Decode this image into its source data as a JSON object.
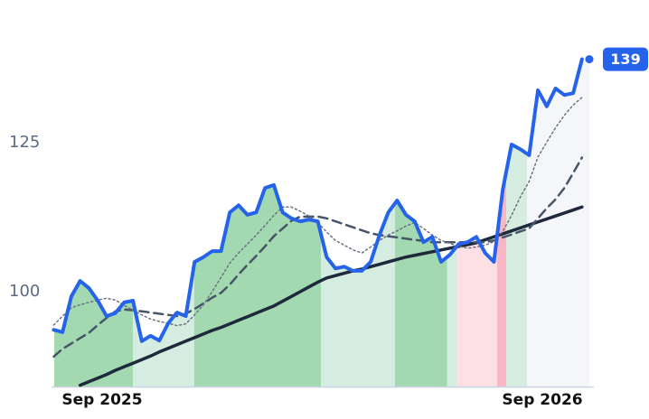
{
  "chart_data": {
    "type": "line",
    "x": [
      2025.56,
      2025.58,
      2025.6,
      2025.62,
      2025.64,
      2025.66,
      2025.68,
      2025.7,
      2025.72,
      2025.74,
      2025.76,
      2025.78,
      2025.8,
      2025.82,
      2025.84,
      2025.86,
      2025.88,
      2025.9,
      2025.92,
      2025.94,
      2025.96,
      2025.98,
      2026.0,
      2026.02,
      2026.04,
      2026.06,
      2026.08,
      2026.1,
      2026.12,
      2026.14,
      2026.16,
      2026.18,
      2026.2,
      2026.22,
      2026.24,
      2026.26,
      2026.28,
      2026.3,
      2026.32,
      2026.34,
      2026.36,
      2026.38,
      2026.4,
      2026.42,
      2026.44,
      2026.46,
      2026.48,
      2026.5,
      2026.52,
      2026.54,
      2026.56,
      2026.58,
      2026.6,
      2026.62,
      2026.64,
      2026.66,
      2026.68,
      2026.7,
      2026.72,
      2026.74,
      2026.76
    ],
    "series": [
      {
        "color": "#2563eb",
        "width": 4,
        "style": "solid",
        "values": [
          93.6,
          93.2,
          99.2,
          101.8,
          100.6,
          98.5,
          95.9,
          96.4,
          98.2,
          98.5,
          91.7,
          92.6,
          91.8,
          94.7,
          96.5,
          95.9,
          105,
          105.8,
          106.8,
          106.8,
          113.3,
          114.5,
          112.9,
          113.3,
          117.4,
          117.9,
          113.3,
          112.3,
          111.8,
          112.1,
          111.8,
          105.8,
          103.9,
          104.2,
          103.5,
          103.5,
          105,
          109.5,
          113.3,
          115.3,
          112.9,
          111.8,
          108.3,
          109.2,
          105,
          106.2,
          108,
          108.3,
          109.2,
          106.5,
          105,
          117.1,
          124.7,
          123.9,
          122.9,
          133.8,
          131.1,
          134.1,
          133,
          133.3,
          139
        ]
      },
      {
        "color": "#6b7280",
        "width": 1.5,
        "style": "dotted",
        "values": [
          94.4,
          95.9,
          97.3,
          97.8,
          98.2,
          98.6,
          98.9,
          98.6,
          97.7,
          96.9,
          96.1,
          95.4,
          95,
          94.7,
          94.3,
          94.6,
          96.1,
          97.8,
          100,
          102.4,
          104.8,
          106.5,
          108,
          109.5,
          111.1,
          112.8,
          114.2,
          114.2,
          113.5,
          112.7,
          111.6,
          110,
          108.6,
          107.8,
          107,
          106.5,
          107.5,
          108.6,
          109.5,
          110.2,
          111,
          111.6,
          110.6,
          109.5,
          108.6,
          108.1,
          107.6,
          107.3,
          107.5,
          107.8,
          108.4,
          110.1,
          112.8,
          115.9,
          118.5,
          122.6,
          125.1,
          127.5,
          129.6,
          131.3,
          132.6
        ]
      },
      {
        "color": "#475569",
        "width": 2.5,
        "style": "dashed",
        "values": [
          89.1,
          90.4,
          91.3,
          92.2,
          93.1,
          94.4,
          95.6,
          96.7,
          97,
          96.9,
          96.7,
          96.5,
          96.3,
          96.1,
          95.9,
          96.3,
          97.1,
          98,
          99,
          99.8,
          101.2,
          102.9,
          104.5,
          106,
          107.6,
          109.3,
          110.6,
          111.9,
          112.6,
          112.6,
          112.6,
          112.3,
          111.8,
          111.3,
          110.8,
          110.3,
          109.8,
          109.5,
          109.3,
          109.1,
          108.9,
          108.7,
          108.5,
          108.3,
          108.3,
          108.3,
          108.3,
          108.3,
          108.3,
          108.3,
          108.6,
          109.1,
          109.6,
          110.1,
          110.6,
          112.3,
          114,
          115.5,
          117.4,
          119.9,
          122.5
        ]
      },
      {
        "color": "#1e293b",
        "width": 3.5,
        "style": "solid",
        "values": [
          null,
          null,
          null,
          84.3,
          84.9,
          85.5,
          86.1,
          86.8,
          87.4,
          88,
          88.6,
          89.2,
          89.9,
          90.5,
          91.1,
          91.7,
          92.3,
          92.9,
          93.5,
          94,
          94.6,
          95.2,
          95.8,
          96.4,
          97,
          97.6,
          98.4,
          99.2,
          100,
          100.8,
          101.6,
          102.3,
          102.7,
          103.1,
          103.5,
          103.8,
          104.2,
          104.6,
          105,
          105.4,
          105.8,
          106.1,
          106.4,
          106.7,
          107,
          107.3,
          107.6,
          107.9,
          108.2,
          108.7,
          109.2,
          109.7,
          110.2,
          110.7,
          111.2,
          111.7,
          112.2,
          112.7,
          113.2,
          113.7,
          114.2
        ]
      }
    ],
    "regions": [
      {
        "start": 2025.561,
        "end": 2025.74,
        "color": "#a3d9b1"
      },
      {
        "start": 2025.74,
        "end": 2025.879,
        "color": "#d4ede0"
      },
      {
        "start": 2025.879,
        "end": 2026.167,
        "color": "#a3d9b1"
      },
      {
        "start": 2026.167,
        "end": 2026.335,
        "color": "#d4ede0"
      },
      {
        "start": 2026.335,
        "end": 2026.454,
        "color": "#a3d9b1"
      },
      {
        "start": 2026.454,
        "end": 2026.475,
        "color": "#d4ede0"
      },
      {
        "start": 2026.475,
        "end": 2026.567,
        "color": "#fde0e6"
      },
      {
        "start": 2026.567,
        "end": 2026.588,
        "color": "#f9b7c5"
      },
      {
        "start": 2026.588,
        "end": 2026.635,
        "color": "#d4ede0"
      },
      {
        "start": 2026.635,
        "end": 2026.777,
        "color": "#f5f6f9"
      }
    ],
    "xlim": [
      2025.555,
      2026.787
    ],
    "xticks": [
      {
        "value": 2025.67,
        "label": "Sep 2025"
      },
      {
        "value": 2026.67,
        "label": "Sep 2026"
      }
    ],
    "ylim": [
      84,
      145
    ],
    "yticks": [
      100,
      125
    ],
    "badge_color": "#2563eb"
  }
}
